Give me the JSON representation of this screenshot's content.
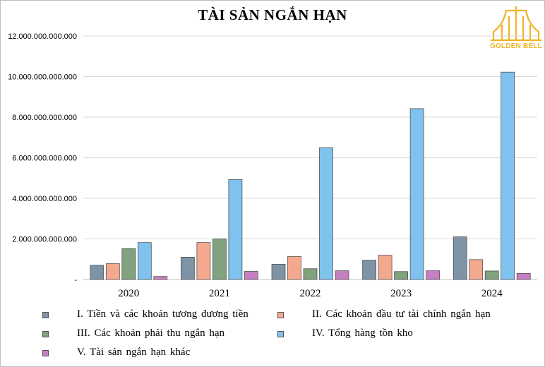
{
  "logo": {
    "text": "GOLDEN BELL",
    "color": "#f0b323"
  },
  "chart_data": {
    "type": "bar",
    "title": "TÀI SẢN NGẮN HẠN",
    "categories": [
      "2020",
      "2021",
      "2022",
      "2023",
      "2024"
    ],
    "ylim": [
      0,
      12000000000000
    ],
    "yticks": [
      0,
      2000000000000,
      4000000000000,
      6000000000000,
      8000000000000,
      10000000000000,
      12000000000000
    ],
    "ytick_labels": [
      "-",
      "2.000.000.000.000",
      "4.000.000.000.000",
      "6.000.000.000.000",
      "8.000.000.000.000",
      "10.000.000.000.000",
      "12.000.000.000.000"
    ],
    "grid": true,
    "legend_position": "bottom",
    "series": [
      {
        "name": "I. Tiền và các khoản tương đương tiền",
        "color": "#7f93a6",
        "values": [
          700000000000,
          1100000000000,
          750000000000,
          950000000000,
          2100000000000
        ]
      },
      {
        "name": "II. Các khoản đầu tư tài chính ngắn hạn",
        "color": "#f4a98e",
        "values": [
          780000000000,
          1820000000000,
          1130000000000,
          1200000000000,
          980000000000
        ]
      },
      {
        "name": "III. Các khoản phải thu ngắn hạn",
        "color": "#80a27e",
        "values": [
          1520000000000,
          2000000000000,
          530000000000,
          390000000000,
          420000000000
        ]
      },
      {
        "name": "IV. Tổng hàng tồn kho",
        "color": "#7fc2ee",
        "values": [
          1820000000000,
          4930000000000,
          6500000000000,
          8420000000000,
          10220000000000
        ]
      },
      {
        "name": "V. Tài sản ngắn hạn khác",
        "color": "#c77fc3",
        "values": [
          150000000000,
          400000000000,
          430000000000,
          430000000000,
          300000000000
        ]
      }
    ]
  }
}
